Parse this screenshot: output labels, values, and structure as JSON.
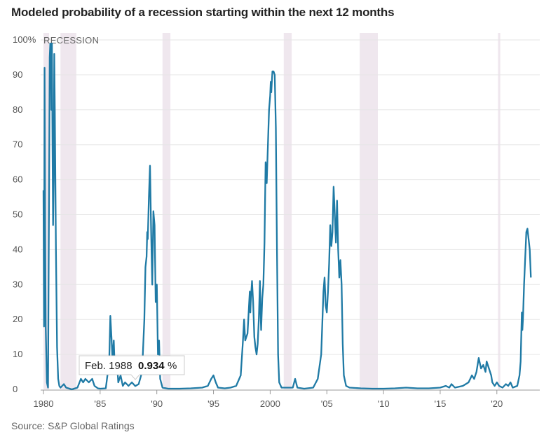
{
  "title": "Modeled probability of a recession starting within the next 12 months",
  "source": "Source: S&P Global Ratings",
  "chart_data": {
    "type": "line",
    "title": "Modeled probability of a recession starting within the next 12 months",
    "ylabel": "",
    "unit_label": "RECESSION",
    "y_top_label": "100%",
    "xlim": [
      1980,
      2023.6
    ],
    "ylim": [
      0,
      100
    ],
    "y_ticks": [
      0,
      10,
      20,
      30,
      40,
      50,
      60,
      70,
      80,
      90,
      100
    ],
    "y_tick_labels": [
      "0",
      "10",
      "20",
      "30",
      "40",
      "50",
      "60",
      "70",
      "80",
      "90",
      "100%"
    ],
    "x_ticks": [
      1980,
      1985,
      1990,
      1995,
      2000,
      2005,
      2010,
      2015,
      2020
    ],
    "x_tick_labels": [
      "1980",
      "'85",
      "'90",
      "'95",
      "2000",
      "'05",
      "'10",
      "'15",
      "'20"
    ],
    "grid": "horizontal",
    "line_color": "#1f7aa5",
    "recession_shade_color": "#efe7ee",
    "recessions": [
      [
        1980.0,
        1980.5
      ],
      [
        1981.5,
        1982.9
      ],
      [
        1990.5,
        1991.2
      ],
      [
        2001.2,
        2001.9
      ],
      [
        2007.9,
        2009.5
      ],
      [
        2020.1,
        2020.3
      ]
    ],
    "tooltip": {
      "date": "Feb. 1988",
      "value": "0.934",
      "suffix": "%",
      "x": 1988.1,
      "y": 0.934
    },
    "series": [
      {
        "values": [
          [
            1980.0,
            57
          ],
          [
            1980.05,
            18
          ],
          [
            1980.1,
            92
          ],
          [
            1980.15,
            45
          ],
          [
            1980.2,
            18
          ],
          [
            1980.3,
            2
          ],
          [
            1980.4,
            0.5
          ],
          [
            1980.5,
            60
          ],
          [
            1980.55,
            95
          ],
          [
            1980.6,
            99
          ],
          [
            1980.65,
            97
          ],
          [
            1980.7,
            80
          ],
          [
            1980.75,
            99
          ],
          [
            1980.8,
            70
          ],
          [
            1980.85,
            47
          ],
          [
            1980.9,
            60
          ],
          [
            1980.95,
            96
          ],
          [
            1981.0,
            80
          ],
          [
            1981.1,
            40
          ],
          [
            1981.2,
            12
          ],
          [
            1981.3,
            3
          ],
          [
            1981.4,
            1
          ],
          [
            1981.5,
            0.5
          ],
          [
            1981.8,
            1.5
          ],
          [
            1982.0,
            0.5
          ],
          [
            1982.5,
            0
          ],
          [
            1983.0,
            0.5
          ],
          [
            1983.3,
            3
          ],
          [
            1983.5,
            2
          ],
          [
            1983.7,
            3
          ],
          [
            1984.0,
            2
          ],
          [
            1984.3,
            3
          ],
          [
            1984.5,
            1
          ],
          [
            1984.8,
            0.3
          ],
          [
            1985.0,
            0.2
          ],
          [
            1985.5,
            0.3
          ],
          [
            1985.8,
            8
          ],
          [
            1985.9,
            21
          ],
          [
            1986.0,
            15
          ],
          [
            1986.1,
            8
          ],
          [
            1986.2,
            14
          ],
          [
            1986.3,
            5
          ],
          [
            1986.5,
            7
          ],
          [
            1986.6,
            2
          ],
          [
            1986.8,
            4
          ],
          [
            1987.0,
            1
          ],
          [
            1987.2,
            2
          ],
          [
            1987.5,
            1
          ],
          [
            1987.8,
            2
          ],
          [
            1988.1,
            0.934
          ],
          [
            1988.4,
            1.5
          ],
          [
            1988.7,
            5
          ],
          [
            1988.9,
            20
          ],
          [
            1989.0,
            35
          ],
          [
            1989.1,
            38
          ],
          [
            1989.15,
            45
          ],
          [
            1989.2,
            43
          ],
          [
            1989.3,
            55
          ],
          [
            1989.4,
            64
          ],
          [
            1989.5,
            45
          ],
          [
            1989.6,
            30
          ],
          [
            1989.7,
            51
          ],
          [
            1989.8,
            47
          ],
          [
            1989.9,
            25
          ],
          [
            1990.0,
            30
          ],
          [
            1990.1,
            10
          ],
          [
            1990.2,
            14
          ],
          [
            1990.3,
            3
          ],
          [
            1990.5,
            0.5
          ],
          [
            1991.0,
            0.2
          ],
          [
            1992.0,
            0.2
          ],
          [
            1993.0,
            0.3
          ],
          [
            1994.0,
            0.5
          ],
          [
            1994.5,
            1
          ],
          [
            1994.8,
            3
          ],
          [
            1995.0,
            4
          ],
          [
            1995.2,
            2
          ],
          [
            1995.4,
            0.5
          ],
          [
            1996.0,
            0.3
          ],
          [
            1996.5,
            0.5
          ],
          [
            1997.0,
            1
          ],
          [
            1997.4,
            4
          ],
          [
            1997.6,
            14
          ],
          [
            1997.7,
            20
          ],
          [
            1997.8,
            14
          ],
          [
            1997.9,
            15
          ],
          [
            1998.0,
            16
          ],
          [
            1998.1,
            22
          ],
          [
            1998.2,
            28
          ],
          [
            1998.25,
            22
          ],
          [
            1998.3,
            26
          ],
          [
            1998.4,
            31
          ],
          [
            1998.45,
            28
          ],
          [
            1998.5,
            25
          ],
          [
            1998.6,
            15
          ],
          [
            1998.7,
            12
          ],
          [
            1998.8,
            10
          ],
          [
            1998.9,
            13
          ],
          [
            1999.0,
            20
          ],
          [
            1999.1,
            31
          ],
          [
            1999.15,
            22
          ],
          [
            1999.2,
            17
          ],
          [
            1999.3,
            26
          ],
          [
            1999.4,
            30
          ],
          [
            1999.5,
            42
          ],
          [
            1999.6,
            65
          ],
          [
            1999.7,
            59
          ],
          [
            1999.8,
            70
          ],
          [
            1999.9,
            80
          ],
          [
            2000.0,
            84
          ],
          [
            2000.05,
            88
          ],
          [
            2000.1,
            85
          ],
          [
            2000.2,
            91
          ],
          [
            2000.3,
            91
          ],
          [
            2000.4,
            90
          ],
          [
            2000.5,
            75
          ],
          [
            2000.6,
            40
          ],
          [
            2000.7,
            10
          ],
          [
            2000.8,
            2
          ],
          [
            2001.0,
            0.5
          ],
          [
            2001.5,
            0.5
          ],
          [
            2002.0,
            0.5
          ],
          [
            2002.2,
            3
          ],
          [
            2002.4,
            0.5
          ],
          [
            2003.0,
            0.2
          ],
          [
            2003.8,
            0.5
          ],
          [
            2004.2,
            3
          ],
          [
            2004.5,
            10
          ],
          [
            2004.7,
            28
          ],
          [
            2004.8,
            32
          ],
          [
            2004.9,
            24
          ],
          [
            2005.0,
            22
          ],
          [
            2005.1,
            28
          ],
          [
            2005.2,
            36
          ],
          [
            2005.3,
            47
          ],
          [
            2005.4,
            41
          ],
          [
            2005.5,
            45
          ],
          [
            2005.6,
            58
          ],
          [
            2005.7,
            50
          ],
          [
            2005.8,
            42
          ],
          [
            2005.9,
            54
          ],
          [
            2006.0,
            40
          ],
          [
            2006.1,
            32
          ],
          [
            2006.2,
            37
          ],
          [
            2006.3,
            30
          ],
          [
            2006.4,
            13
          ],
          [
            2006.5,
            4
          ],
          [
            2006.7,
            1
          ],
          [
            2007.0,
            0.5
          ],
          [
            2008.0,
            0.3
          ],
          [
            2009.0,
            0.2
          ],
          [
            2010.0,
            0.2
          ],
          [
            2011.0,
            0.3
          ],
          [
            2012.0,
            0.5
          ],
          [
            2013.0,
            0.3
          ],
          [
            2014.0,
            0.3
          ],
          [
            2015.0,
            0.5
          ],
          [
            2015.5,
            1
          ],
          [
            2015.8,
            0.5
          ],
          [
            2016.0,
            1.5
          ],
          [
            2016.3,
            0.5
          ],
          [
            2017.0,
            1
          ],
          [
            2017.5,
            2
          ],
          [
            2017.8,
            4
          ],
          [
            2018.0,
            3
          ],
          [
            2018.2,
            5
          ],
          [
            2018.4,
            9
          ],
          [
            2018.6,
            6
          ],
          [
            2018.8,
            7
          ],
          [
            2019.0,
            5
          ],
          [
            2019.1,
            8
          ],
          [
            2019.3,
            6
          ],
          [
            2019.5,
            4
          ],
          [
            2019.6,
            2
          ],
          [
            2019.8,
            1
          ],
          [
            2020.0,
            2
          ],
          [
            2020.2,
            1
          ],
          [
            2020.5,
            0.5
          ],
          [
            2020.8,
            1.5
          ],
          [
            2021.0,
            1
          ],
          [
            2021.2,
            2
          ],
          [
            2021.4,
            0.5
          ],
          [
            2021.8,
            1
          ],
          [
            2022.0,
            4
          ],
          [
            2022.1,
            8
          ],
          [
            2022.2,
            22
          ],
          [
            2022.25,
            17
          ],
          [
            2022.3,
            20
          ],
          [
            2022.4,
            30
          ],
          [
            2022.6,
            45
          ],
          [
            2022.7,
            46
          ],
          [
            2022.9,
            40
          ],
          [
            2023.0,
            32
          ]
        ]
      }
    ]
  }
}
